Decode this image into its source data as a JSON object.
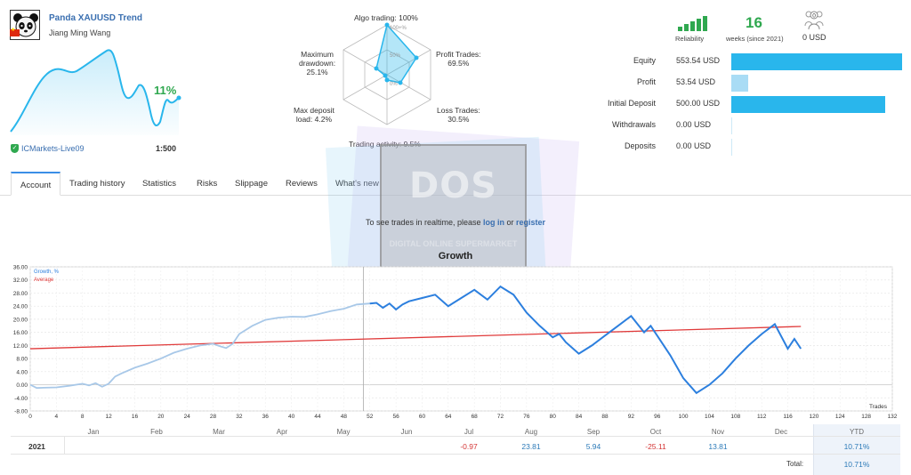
{
  "header": {
    "signal_name": "Panda XAUUSD Trend",
    "author": "Jiang Ming Wang",
    "growth": "11%",
    "broker": "ICMarkets-Live09",
    "leverage": "1:500"
  },
  "radar": {
    "algo": "Algo trading: 100%",
    "profit_trades_label": "Profit Trades:",
    "profit_trades_value": "69.5%",
    "loss_trades_label": "Loss Trades:",
    "loss_trades_value": "30.5%",
    "activity": "Trading activity: 9.5%",
    "max_deposit_label": "Max deposit",
    "max_deposit_value": "load: 4.2%",
    "max_dd_label1": "Maximum",
    "max_dd_label2": "drawdown:",
    "max_dd_value": "25.1%",
    "ring_100": "100+%",
    "ring_50": "50%",
    "ring_0": "0%"
  },
  "summary": {
    "reliability_label": "Reliability",
    "weeks": "16",
    "weeks_label": "weeks (since 2021)",
    "subscribers": "0",
    "subscribers_value": "0 USD"
  },
  "stats": [
    {
      "name": "Equity",
      "value": "553.54 USD",
      "fraction": 1.0
    },
    {
      "name": "Profit",
      "value": "53.54 USD",
      "fraction": 0.097
    },
    {
      "name": "Initial Deposit",
      "value": "500.00 USD",
      "fraction": 0.903
    },
    {
      "name": "Withdrawals",
      "value": "0.00 USD",
      "fraction": 0
    },
    {
      "name": "Deposits",
      "value": "0.00 USD",
      "fraction": 0
    }
  ],
  "tabs": [
    "Account",
    "Trading history",
    "Statistics",
    "Risks",
    "Slippage",
    "Reviews",
    "What's new"
  ],
  "notice": {
    "prefix": "To see trades in realtime, please ",
    "login": "log in",
    "middle": " or ",
    "register": "register"
  },
  "watermark": {
    "big": "DOS",
    "small": "DIGITAL ONLINE SUPERMARKET"
  },
  "growth_title": "Growth",
  "chart_data": {
    "type": "line",
    "title": "Growth",
    "xlabel": "Trades",
    "ylabel": "",
    "xlim": [
      0,
      132
    ],
    "ylim": [
      -8,
      36
    ],
    "x_ticks": [
      0,
      4,
      8,
      12,
      16,
      20,
      24,
      28,
      32,
      36,
      40,
      44,
      48,
      52,
      56,
      60,
      64,
      68,
      72,
      76,
      80,
      84,
      88,
      92,
      96,
      100,
      104,
      108,
      112,
      116,
      120,
      124,
      128,
      132
    ],
    "y_ticks": [
      "36.00",
      "32.00",
      "28.00",
      "24.00",
      "20.00",
      "16.00",
      "12.00",
      "8.00",
      "4.00",
      "0.00",
      "-4.00",
      "-8.00"
    ],
    "series": [
      {
        "name": "Growth, %",
        "color": "#2c7fde",
        "x": [
          0,
          1,
          2,
          4,
          6,
          8,
          9,
          10,
          11,
          12,
          13,
          14,
          16,
          18,
          20,
          22,
          24,
          26,
          28,
          29,
          30,
          31,
          32,
          34,
          36,
          38,
          40,
          42,
          44,
          46,
          48,
          50,
          52,
          53,
          54,
          55,
          56,
          57,
          58,
          60,
          62,
          64,
          66,
          68,
          70,
          72,
          74,
          76,
          78,
          80,
          81,
          82,
          84,
          86,
          88,
          90,
          92,
          94,
          95,
          96,
          98,
          100,
          102,
          104,
          106,
          108,
          110,
          112,
          114,
          116,
          117,
          118
        ],
        "y": [
          0,
          -1,
          -0.9,
          -0.8,
          -0.3,
          0.3,
          -0.2,
          0.5,
          -0.6,
          0.3,
          2.5,
          3.5,
          5.2,
          6.5,
          8,
          9.8,
          11,
          12,
          12.5,
          11.8,
          11.2,
          12.5,
          15.5,
          18,
          19.8,
          20.5,
          20.8,
          20.7,
          21.5,
          22.5,
          23.2,
          24.5,
          24.8,
          25,
          23.5,
          24.8,
          23,
          24.5,
          25.5,
          26.5,
          27.5,
          24,
          26.5,
          29,
          26,
          30,
          27.5,
          22,
          18,
          14.5,
          15.5,
          13,
          9.5,
          12,
          15,
          18,
          21,
          16,
          18,
          15,
          9,
          2,
          -2.5,
          0,
          3.5,
          8,
          12,
          15.5,
          18.5,
          11,
          14,
          11
        ]
      },
      {
        "name": "Average",
        "color": "#e03a3a",
        "x": [
          0,
          118
        ],
        "y": [
          11,
          17.8
        ]
      }
    ],
    "growth_split_index": 52,
    "months": [
      "Jan",
      "Feb",
      "Mar",
      "Apr",
      "May",
      "Jun",
      "Jul",
      "Aug",
      "Sep",
      "Oct",
      "Nov",
      "Dec",
      "YTD"
    ],
    "grid": true,
    "legend": "top-left"
  },
  "year_table": {
    "year": "2021",
    "cells": [
      {
        "month": "Jul",
        "value": "-0.97",
        "sign": "neg"
      },
      {
        "month": "Aug",
        "value": "23.81",
        "sign": "pos"
      },
      {
        "month": "Sep",
        "value": "5.94",
        "sign": "pos"
      },
      {
        "month": "Oct",
        "value": "-25.11",
        "sign": "neg"
      },
      {
        "month": "Nov",
        "value": "13.81",
        "sign": "pos"
      }
    ],
    "ytd": "10.71%",
    "total_label": "Total:",
    "total": "10.71%"
  }
}
